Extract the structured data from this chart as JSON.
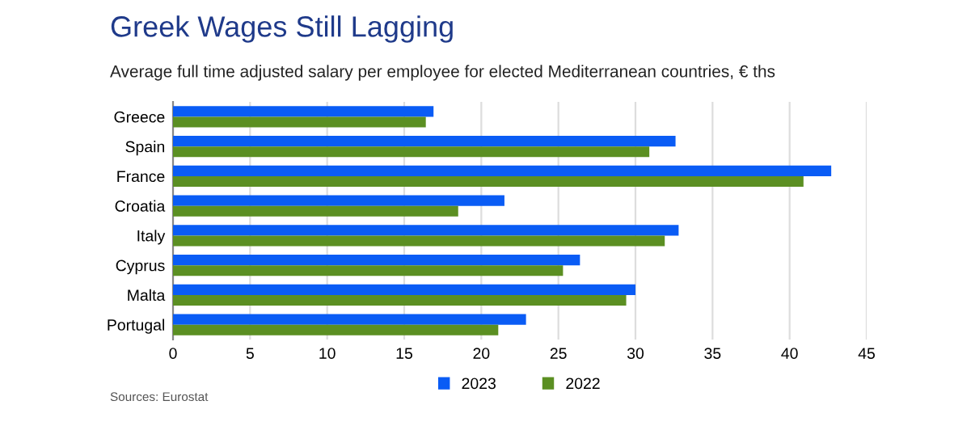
{
  "chart_data": {
    "type": "bar",
    "orientation": "horizontal",
    "title": "Greek Wages Still Lagging",
    "subtitle": "Average full time adjusted salary per employee for elected Mediterranean countries, € ths",
    "categories": [
      "Greece",
      "Spain",
      "France",
      "Croatia",
      "Italy",
      "Cyprus",
      "Malta",
      "Portugal"
    ],
    "series": [
      {
        "name": "2023",
        "color": "#0a5cf5",
        "values": [
          16.9,
          32.6,
          42.7,
          21.5,
          32.8,
          26.4,
          30.0,
          22.9
        ]
      },
      {
        "name": "2022",
        "color": "#5b8f22",
        "values": [
          16.4,
          30.9,
          40.9,
          18.5,
          31.9,
          25.3,
          29.4,
          21.1
        ]
      }
    ],
    "xlim": [
      0,
      45
    ],
    "xticks": [
      0,
      5,
      10,
      15,
      20,
      25,
      30,
      35,
      40,
      45
    ],
    "grid": "x",
    "legend": "bottom",
    "annotations": [
      "Sources: Eurostat"
    ]
  }
}
